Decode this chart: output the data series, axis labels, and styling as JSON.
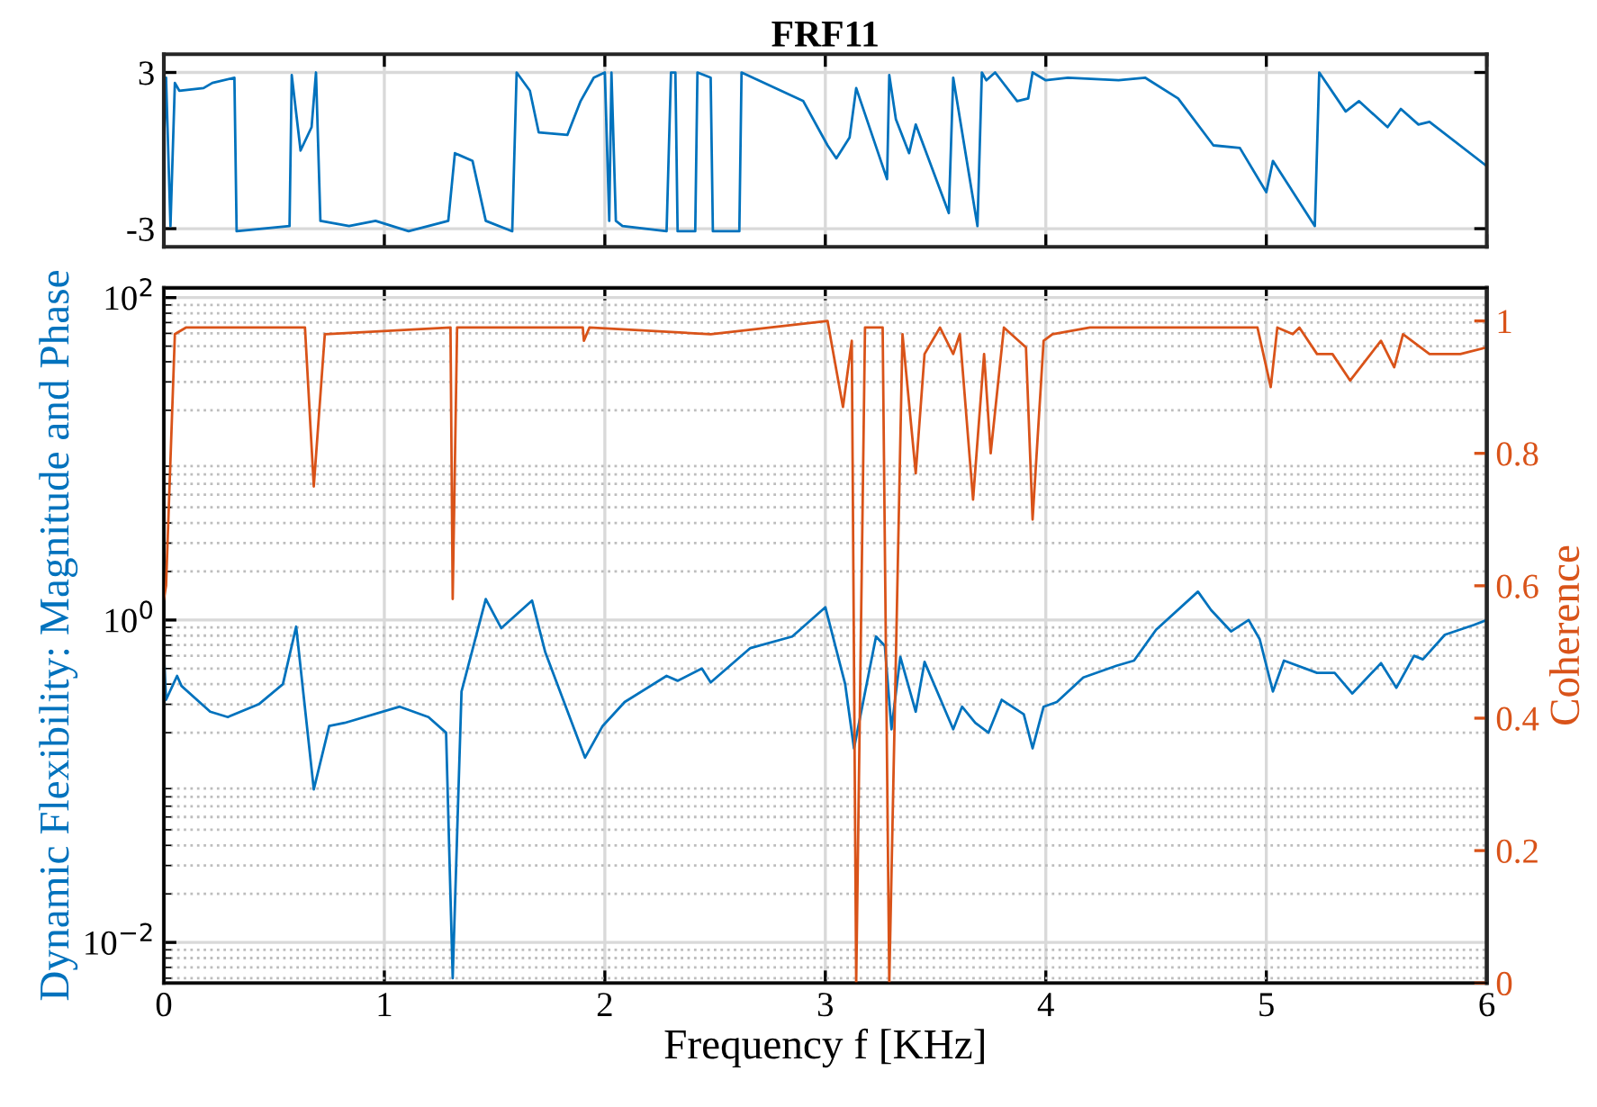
{
  "chart_data": [
    {
      "type": "line",
      "title": "FRF11",
      "xlim": [
        0,
        6
      ],
      "xticks": [
        0,
        1,
        2,
        3,
        4,
        5,
        6
      ],
      "ylim": [
        -3.7,
        3.7
      ],
      "yticks": [
        3,
        -3
      ],
      "grid": true,
      "tick_labels": "y",
      "series": [
        {
          "color": "#0072bd",
          "x": [
            0,
            0.01,
            0.03,
            0.05,
            0.07,
            0.18,
            0.22,
            0.32,
            0.33,
            0.57,
            0.58,
            0.62,
            0.67,
            0.69,
            0.71,
            0.84,
            0.96,
            1.11,
            1.29,
            1.32,
            1.4,
            1.46,
            1.58,
            1.6,
            1.66,
            1.7,
            1.83,
            1.89,
            1.95,
            2.0,
            2.02,
            2.03,
            2.05,
            2.08,
            2.28,
            2.3,
            2.32,
            2.33,
            2.41,
            2.42,
            2.48,
            2.49,
            2.61,
            2.62,
            2.9,
            3.01,
            3.05,
            3.11,
            3.14,
            3.28,
            3.29,
            3.32,
            3.38,
            3.41,
            3.56,
            3.58,
            3.69,
            3.71,
            3.73,
            3.77,
            3.87,
            3.92,
            3.94,
            4.0,
            4.1,
            4.33,
            4.45,
            4.6,
            4.76,
            4.88,
            5.0,
            5.03,
            5.22,
            5.24,
            5.36,
            5.42,
            5.55,
            5.61,
            5.69,
            5.74,
            6.0
          ],
          "values": [
            0.2,
            2.8,
            -2.9,
            2.6,
            2.3,
            2.4,
            2.6,
            2.8,
            -3.1,
            -2.9,
            2.9,
            0,
            0.9,
            3.0,
            -2.7,
            -2.9,
            -2.7,
            -3.1,
            -2.7,
            -0.1,
            -0.4,
            -2.7,
            -3.1,
            3.0,
            2.3,
            0.7,
            0.6,
            1.9,
            2.8,
            3.0,
            -2.7,
            3.0,
            -2.7,
            -2.9,
            -3.1,
            3.0,
            3.0,
            -3.1,
            -3.1,
            3.0,
            2.8,
            -3.1,
            -3.1,
            3.0,
            1.9,
            0.2,
            -0.3,
            0.5,
            2.4,
            -1.1,
            2.9,
            1.2,
            -0.1,
            1.0,
            -2.4,
            2.8,
            -2.9,
            3.0,
            2.7,
            3.0,
            1.9,
            2.0,
            3.0,
            2.7,
            2.8,
            2.7,
            2.8,
            2.0,
            0.2,
            0.1,
            -1.6,
            -0.4,
            -2.9,
            3.0,
            1.5,
            1.9,
            0.9,
            1.6,
            1.0,
            1.1,
            -0.6
          ]
        }
      ]
    },
    {
      "type": "line",
      "xlabel": "Frequency f [KHz]",
      "ylabel": "Dynamic Flexibility: Magnitude and Phase",
      "y2label": "Coherence",
      "log": "y",
      "xlim": [
        0,
        6
      ],
      "xticks": [
        0,
        1,
        2,
        3,
        4,
        5,
        6
      ],
      "ylim": [
        0.0056,
        115
      ],
      "yticks": [
        {
          "value": 0.01,
          "label": "10$^{−2}$"
        },
        {
          "value": 1,
          "label": "10$^{0}$"
        },
        {
          "value": 100,
          "label": "10$^{2}$"
        }
      ],
      "y2lim": [
        0,
        1.05
      ],
      "y2ticks": [
        0,
        0.2,
        0.4,
        0.6,
        0.8,
        1
      ],
      "grid": true,
      "series": [
        {
          "color": "#0072bd",
          "x": [
            0,
            0.01,
            0.06,
            0.08,
            0.21,
            0.29,
            0.43,
            0.54,
            0.6,
            0.68,
            0.75,
            0.82,
            1.07,
            1.2,
            1.28,
            1.31,
            1.35,
            1.46,
            1.53,
            1.67,
            1.73,
            1.91,
            1.99,
            2.09,
            2.28,
            2.33,
            2.44,
            2.48,
            2.66,
            2.85,
            3.0,
            3.09,
            3.13,
            3.23,
            3.27,
            3.3,
            3.34,
            3.41,
            3.45,
            3.58,
            3.62,
            3.68,
            3.74,
            3.8,
            3.9,
            3.94,
            3.99,
            4.05,
            4.17,
            4.32,
            4.4,
            4.5,
            4.69,
            4.75,
            4.84,
            4.92,
            4.97,
            5.03,
            5.08,
            5.23,
            5.31,
            5.39,
            5.52,
            5.59,
            5.67,
            5.71,
            5.81,
            5.94,
            6.0
          ],
          "values": [
            0.63,
            0.32,
            0.45,
            0.39,
            0.27,
            0.25,
            0.3,
            0.4,
            0.91,
            0.089,
            0.22,
            0.23,
            0.29,
            0.25,
            0.2,
            0.006,
            0.36,
            1.35,
            0.89,
            1.32,
            0.63,
            0.14,
            0.22,
            0.31,
            0.45,
            0.42,
            0.5,
            0.41,
            0.67,
            0.79,
            1.2,
            0.4,
            0.16,
            0.79,
            0.69,
            0.21,
            0.59,
            0.27,
            0.55,
            0.21,
            0.29,
            0.23,
            0.2,
            0.32,
            0.26,
            0.16,
            0.29,
            0.31,
            0.44,
            0.52,
            0.56,
            0.87,
            1.5,
            1.15,
            0.85,
            1.0,
            0.76,
            0.36,
            0.56,
            0.47,
            0.47,
            0.35,
            0.54,
            0.38,
            0.6,
            0.57,
            0.81,
            0.93,
            1.0
          ]
        },
        {
          "color": "#d95319",
          "axis": "y2",
          "x": [
            0,
            0.01,
            0.05,
            0.1,
            0.64,
            0.68,
            0.73,
            1.3,
            1.31,
            1.33,
            1.9,
            1.905,
            1.93,
            2.48,
            3.01,
            3.08,
            3.12,
            3.14,
            3.18,
            3.26,
            3.29,
            3.35,
            3.41,
            3.45,
            3.52,
            3.58,
            3.61,
            3.67,
            3.72,
            3.75,
            3.81,
            3.91,
            3.94,
            3.99,
            4.03,
            4.2,
            4.96,
            5.02,
            5.05,
            5.12,
            5.15,
            5.23,
            5.3,
            5.38,
            5.52,
            5.58,
            5.62,
            5.74,
            5.88,
            6.0
          ],
          "values": [
            0.58,
            0.6,
            0.98,
            0.99,
            0.99,
            0.75,
            0.98,
            0.99,
            0.58,
            0.99,
            0.99,
            0.97,
            0.99,
            0.98,
            1.0,
            0.87,
            0.97,
            0,
            0.99,
            0.99,
            0,
            0.98,
            0.77,
            0.95,
            0.99,
            0.95,
            0.98,
            0.73,
            0.95,
            0.8,
            0.99,
            0.96,
            0.7,
            0.97,
            0.98,
            0.99,
            0.99,
            0.9,
            0.99,
            0.98,
            0.99,
            0.95,
            0.95,
            0.91,
            0.97,
            0.93,
            0.98,
            0.95,
            0.95,
            0.96
          ]
        }
      ]
    }
  ]
}
